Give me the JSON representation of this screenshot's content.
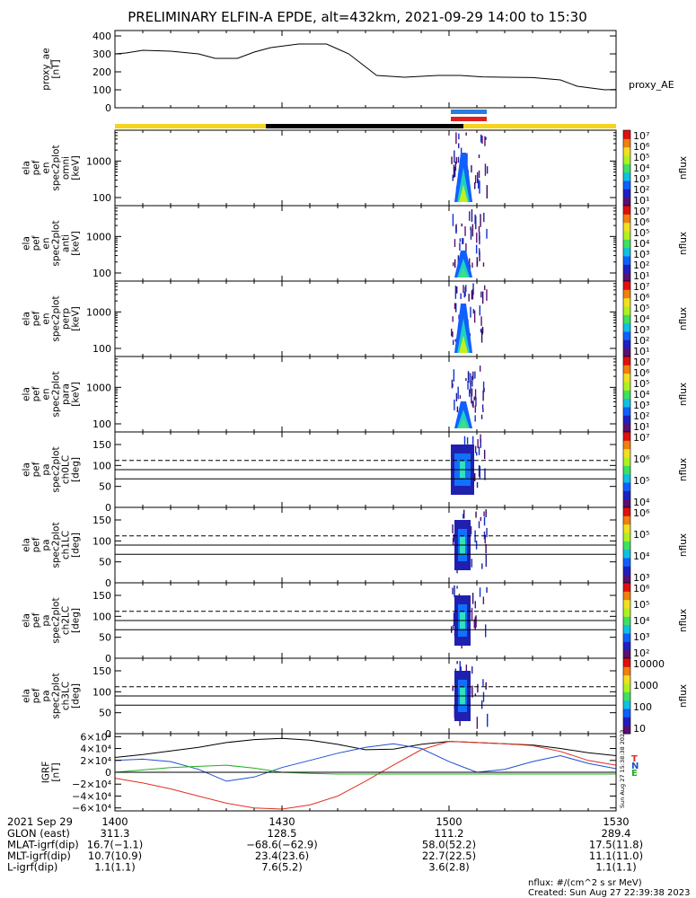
{
  "title": "PRELIMINARY ELFIN-A EPDE, alt=432km, 2021-09-29 14:00 to 15:30",
  "colors": {
    "bar_day": "#f5d320",
    "bar_night": "#000000",
    "bar_blue": "#2a7de0",
    "bar_red": "#e02020",
    "trace": "#000000",
    "bx": "#e03020",
    "by": "#2050d0",
    "bz": "#20b020"
  },
  "chart_data": [
    {
      "type": "line",
      "id": "proxy_ae",
      "ylabel": [
        "proxy_ae",
        "[nT]"
      ],
      "legend": "proxy_AE",
      "ylim": [
        0,
        430
      ],
      "yticks": [
        0,
        100,
        200,
        300,
        400
      ],
      "x_minutes": [
        0,
        2,
        5,
        10,
        15,
        18,
        22,
        25,
        28,
        33,
        38,
        42,
        47,
        52,
        55,
        58,
        62,
        66,
        70,
        75,
        80,
        83,
        85,
        88,
        90
      ],
      "values": [
        300,
        305,
        320,
        315,
        300,
        275,
        275,
        310,
        335,
        355,
        355,
        300,
        180,
        170,
        175,
        180,
        180,
        172,
        170,
        168,
        155,
        120,
        112,
        100,
        102
      ]
    },
    {
      "type": "heatmap",
      "id": "en_omni",
      "ylabel": [
        "ela",
        "pef",
        "en",
        "spec2plot",
        "omni",
        "[keV]"
      ],
      "yscale": "log",
      "ylim": [
        60,
        7000
      ],
      "yticks": [
        100,
        1000
      ],
      "colorbar": {
        "label": "nflux",
        "ticks": [
          "10¹",
          "10²",
          "10³",
          "10⁴",
          "10⁵",
          "10⁶",
          "10⁷"
        ]
      }
    },
    {
      "type": "heatmap",
      "id": "en_anti",
      "ylabel": [
        "ela",
        "pef",
        "en",
        "spec2plot",
        "anti",
        "[keV]"
      ],
      "yscale": "log",
      "ylim": [
        60,
        7000
      ],
      "yticks": [
        100,
        1000
      ],
      "colorbar": {
        "label": "nflux",
        "ticks": [
          "10¹",
          "10²",
          "10³",
          "10⁴",
          "10⁵",
          "10⁶",
          "10⁷"
        ]
      }
    },
    {
      "type": "heatmap",
      "id": "en_perp",
      "ylabel": [
        "ela",
        "pef",
        "en",
        "spec2plot",
        "perp",
        "[keV]"
      ],
      "yscale": "log",
      "ylim": [
        60,
        7000
      ],
      "yticks": [
        100,
        1000
      ],
      "colorbar": {
        "label": "nflux",
        "ticks": [
          "10¹",
          "10²",
          "10³",
          "10⁴",
          "10⁵",
          "10⁶",
          "10⁷"
        ]
      }
    },
    {
      "type": "heatmap",
      "id": "en_para",
      "ylabel": [
        "ela",
        "pef",
        "en",
        "spec2plot",
        "para",
        "[keV]"
      ],
      "yscale": "log",
      "ylim": [
        60,
        7000
      ],
      "yticks": [
        100,
        1000
      ],
      "colorbar": {
        "label": "nflux",
        "ticks": [
          "10¹",
          "10²",
          "10³",
          "10⁴",
          "10⁵",
          "10⁶",
          "10⁷"
        ]
      }
    },
    {
      "type": "heatmap",
      "id": "pa_ch0",
      "ylabel": [
        "ela",
        "pef",
        "pa",
        "spec2plot",
        "ch0LC",
        "[deg]"
      ],
      "ylim": [
        0,
        180
      ],
      "yticks": [
        0,
        50,
        100,
        150
      ],
      "lines": {
        "solid": [
          90,
          68
        ],
        "dashed": [
          112
        ]
      },
      "colorbar": {
        "label": "nflux",
        "ticks": [
          "10⁴",
          "10⁵",
          "10⁶",
          "10⁷"
        ]
      }
    },
    {
      "type": "heatmap",
      "id": "pa_ch1",
      "ylabel": [
        "ela",
        "pef",
        "pa",
        "spec2plot",
        "ch1LC",
        "[deg]"
      ],
      "ylim": [
        0,
        180
      ],
      "yticks": [
        0,
        50,
        100,
        150
      ],
      "lines": {
        "solid": [
          90,
          68
        ],
        "dashed": [
          112
        ]
      },
      "colorbar": {
        "label": "nflux",
        "ticks": [
          "10³",
          "10⁴",
          "10⁵",
          "10⁶"
        ]
      }
    },
    {
      "type": "heatmap",
      "id": "pa_ch2",
      "ylabel": [
        "ela",
        "pef",
        "pa",
        "spec2plot",
        "ch2LC",
        "[deg]"
      ],
      "ylim": [
        0,
        180
      ],
      "yticks": [
        0,
        50,
        100,
        150
      ],
      "lines": {
        "solid": [
          90,
          68
        ],
        "dashed": [
          112
        ]
      },
      "colorbar": {
        "label": "nflux",
        "ticks": [
          "10²",
          "10³",
          "10⁴",
          "10⁵",
          "10⁶"
        ]
      }
    },
    {
      "type": "heatmap",
      "id": "pa_ch3",
      "ylabel": [
        "ela",
        "pef",
        "pa",
        "spec2plot",
        "ch3LC",
        "[deg]"
      ],
      "ylim": [
        0,
        180
      ],
      "yticks": [
        0,
        50,
        100,
        150
      ],
      "lines": {
        "solid": [
          90,
          68
        ],
        "dashed": [
          112
        ]
      },
      "colorbar": {
        "label": "nflux",
        "ticks": [
          "10",
          "100",
          "1000",
          "10000"
        ]
      }
    },
    {
      "type": "line",
      "id": "igrf",
      "ylabel": [
        "IGRF",
        "[nT]"
      ],
      "ylim": [
        -65000,
        65000
      ],
      "yticks": [
        {
          "v": 60000,
          "t": "6×10⁴"
        },
        {
          "v": 40000,
          "t": "4×10⁴"
        },
        {
          "v": 20000,
          "t": "2×10⁴"
        },
        {
          "v": 0,
          "t": "0"
        },
        {
          "v": -20000,
          "t": "−2×10⁴"
        },
        {
          "v": -40000,
          "t": "−4×10⁴"
        },
        {
          "v": -60000,
          "t": "−6×10⁴"
        }
      ],
      "legend": [
        "T",
        "N",
        "E"
      ],
      "side_note": "Sun Aug 27 15:38:38 2023",
      "x_minutes": [
        0,
        5,
        10,
        15,
        20,
        25,
        30,
        35,
        40,
        45,
        50,
        55,
        60,
        65,
        70,
        75,
        80,
        85,
        90
      ],
      "series": [
        {
          "values": [
            25000,
            30000,
            36000,
            42000,
            50000,
            55000,
            57000,
            54000,
            47000,
            38000,
            39000,
            47000,
            52000,
            50000,
            48000,
            46000,
            40000,
            33000,
            28000
          ]
        },
        {
          "values": [
            -10000,
            -18000,
            -28000,
            -40000,
            -52000,
            -60000,
            -62000,
            -55000,
            -40000,
            -15000,
            12000,
            38000,
            52000,
            50000,
            48000,
            45000,
            35000,
            20000,
            12000
          ]
        },
        {
          "values": [
            20000,
            22000,
            18000,
            5000,
            -15000,
            -8000,
            8000,
            20000,
            32000,
            42000,
            48000,
            40000,
            18000,
            0,
            5000,
            18000,
            28000,
            15000,
            6000
          ]
        },
        {
          "values": [
            0,
            4000,
            8000,
            10000,
            12000,
            7000,
            0,
            -2000,
            -3000,
            -3000,
            -3000,
            -3000,
            -3000,
            -3000,
            -3000,
            -3000,
            -3000,
            -3000,
            -3000
          ]
        }
      ]
    }
  ],
  "time_axis": {
    "row_label": "2021 Sep 29",
    "ticks": [
      "1400",
      "1430",
      "1500",
      "1530"
    ]
  },
  "orbit_rows": [
    {
      "label": "GLON (east)",
      "values": [
        "311.3",
        "128.5",
        "111.2",
        "289.4"
      ]
    },
    {
      "label": "MLAT-igrf(dip)",
      "values": [
        "16.7(−1.1)",
        "−68.6(−62.9)",
        "58.0(52.2)",
        "17.5(11.8)"
      ]
    },
    {
      "label": "MLT-igrf(dip)",
      "values": [
        "10.7(10.9)",
        "23.4(23.6)",
        "22.7(22.5)",
        "11.1(11.0)"
      ]
    },
    {
      "label": "L-igrf(dip)",
      "values": [
        "1.1(1.1)",
        "7.6(5.2)",
        "3.6(2.8)",
        "1.1(1.1)"
      ]
    }
  ],
  "footer": {
    "units": "nflux: #/(cm^2 s sr MeV)",
    "created": "Created: Sun Aug 27 22:39:38 2023"
  }
}
